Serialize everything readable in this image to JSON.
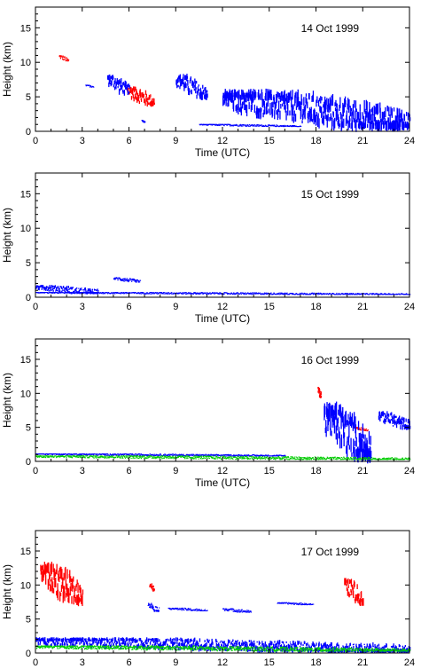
{
  "chart_data": [
    {
      "type": "scatter",
      "date": "14 Oct 1999",
      "xlabel": "Time (UTC)",
      "ylabel": "Height (km)",
      "xlim": [
        0,
        24
      ],
      "ylim": [
        0,
        18
      ],
      "xticks": [
        "0",
        "3",
        "6",
        "9",
        "12",
        "15",
        "18",
        "21",
        "24"
      ],
      "yticks": [
        "0",
        "5",
        "10",
        "15"
      ],
      "series": [
        {
          "color": "#ff0000",
          "segments": [
            {
              "x0": 1.5,
              "x1": 2.1,
              "y0": 10.2,
              "y1": 10.9
            },
            {
              "x0": 5.8,
              "x1": 7.6,
              "y0": 4.0,
              "y1": 6.2
            }
          ]
        },
        {
          "color": "#0000ff",
          "segments": [
            {
              "x0": 3.2,
              "x1": 3.7,
              "y0": 6.4,
              "y1": 6.7
            },
            {
              "x0": 4.6,
              "x1": 6.0,
              "y0": 5.6,
              "y1": 7.8
            },
            {
              "x0": 6.8,
              "x1": 7.0,
              "y0": 1.3,
              "y1": 1.6
            },
            {
              "x0": 9.0,
              "x1": 11.0,
              "y0": 5.0,
              "y1": 7.8
            },
            {
              "x0": 10.5,
              "x1": 17.0,
              "y0": 0.7,
              "y1": 1.0
            },
            {
              "x0": 12.0,
              "x1": 24.0,
              "y0": 0.8,
              "y1": 5.3
            }
          ]
        }
      ]
    },
    {
      "type": "scatter",
      "date": "15 Oct 1999",
      "xlabel": "Time (UTC)",
      "ylabel": "Height (km)",
      "xlim": [
        0,
        24
      ],
      "ylim": [
        0,
        18
      ],
      "xticks": [
        "0",
        "3",
        "6",
        "9",
        "12",
        "15",
        "18",
        "21",
        "24"
      ],
      "yticks": [
        "0",
        "5",
        "10",
        "15"
      ],
      "series": [
        {
          "color": "#0000ff",
          "segments": [
            {
              "x0": 0.0,
              "x1": 4.0,
              "y0": 0.6,
              "y1": 1.6
            },
            {
              "x0": 5.0,
              "x1": 6.7,
              "y0": 2.2,
              "y1": 2.8
            },
            {
              "x0": 0.0,
              "x1": 24.0,
              "y0": 0.4,
              "y1": 0.7
            }
          ]
        }
      ]
    },
    {
      "type": "scatter",
      "date": "16 Oct 1999",
      "xlabel": "Time (UTC)",
      "ylabel": "Height (km)",
      "xlim": [
        0,
        24
      ],
      "ylim": [
        0,
        18
      ],
      "xticks": [
        "0",
        "3",
        "6",
        "9",
        "12",
        "15",
        "18",
        "21",
        "24"
      ],
      "yticks": [
        "0",
        "5",
        "10",
        "15"
      ],
      "series": [
        {
          "color": "#ff0000",
          "segments": [
            {
              "x0": 18.1,
              "x1": 18.3,
              "y0": 9.5,
              "y1": 10.8
            },
            {
              "x0": 20.4,
              "x1": 21.3,
              "y0": 4.5,
              "y1": 5.0
            }
          ]
        },
        {
          "color": "#0000ff",
          "segments": [
            {
              "x0": 18.5,
              "x1": 21.5,
              "y0": 1.0,
              "y1": 7.5
            },
            {
              "x0": 22.0,
              "x1": 24.0,
              "y0": 5.0,
              "y1": 7.0
            },
            {
              "x0": 0.0,
              "x1": 16.0,
              "y0": 0.8,
              "y1": 1.1
            }
          ]
        },
        {
          "color": "#00cc00",
          "segments": [
            {
              "x0": 0.0,
              "x1": 24.0,
              "y0": 0.3,
              "y1": 0.8
            }
          ]
        }
      ]
    },
    {
      "type": "scatter",
      "date": "17 Oct 1999",
      "xlabel": "Time (UTC)",
      "ylabel": "Height (km)",
      "xlim": [
        0,
        24
      ],
      "ylim": [
        0,
        18
      ],
      "xticks": [
        "0",
        "3",
        "6",
        "9",
        "12",
        "15",
        "18",
        "21",
        "24"
      ],
      "yticks": [
        "0",
        "5",
        "10",
        "15"
      ],
      "series": [
        {
          "color": "#ff0000",
          "segments": [
            {
              "x0": 0.3,
              "x1": 3.0,
              "y0": 7.8,
              "y1": 12.5
            },
            {
              "x0": 7.3,
              "x1": 7.6,
              "y0": 9.2,
              "y1": 10.2
            },
            {
              "x0": 19.8,
              "x1": 21.0,
              "y0": 7.5,
              "y1": 10.5
            }
          ]
        },
        {
          "color": "#0000ff",
          "segments": [
            {
              "x0": 7.2,
              "x1": 7.9,
              "y0": 6.2,
              "y1": 7.2
            },
            {
              "x0": 8.5,
              "x1": 11.0,
              "y0": 6.2,
              "y1": 6.6
            },
            {
              "x0": 12.0,
              "x1": 13.8,
              "y0": 6.0,
              "y1": 6.5
            },
            {
              "x0": 15.5,
              "x1": 17.8,
              "y0": 7.1,
              "y1": 7.4
            },
            {
              "x0": 0.0,
              "x1": 24.0,
              "y0": 0.3,
              "y1": 2.0
            }
          ]
        },
        {
          "color": "#00cc00",
          "segments": [
            {
              "x0": 0.0,
              "x1": 24.0,
              "y0": 0.3,
              "y1": 1.0
            }
          ]
        }
      ]
    }
  ]
}
